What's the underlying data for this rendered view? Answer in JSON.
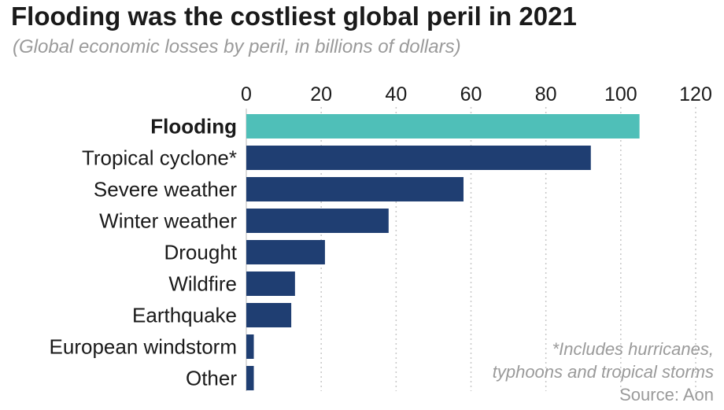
{
  "chart_data": {
    "type": "bar",
    "orientation": "horizontal",
    "title": "Flooding was the costliest global peril in 2021",
    "subtitle": "(Global economic losses by peril, in billions of dollars)",
    "categories": [
      "Flooding",
      "Tropical cyclone*",
      "Severe weather",
      "Winter weather",
      "Drought",
      "Wildfire",
      "Earthquake",
      "European windstorm",
      "Other"
    ],
    "values": [
      105,
      92,
      58,
      38,
      21,
      13,
      12,
      2,
      2
    ],
    "highlight_index": 0,
    "xlim": [
      0,
      120
    ],
    "ticks": [
      "0",
      "20",
      "40",
      "60",
      "80",
      "100",
      "120"
    ],
    "grid": true,
    "grid_style": "dotted vertical",
    "colors": {
      "bar": "#1f3e72",
      "highlight": "#4fbfb8",
      "grid": "#c8c8c8"
    },
    "footnote_lines": [
      "*Includes hurricanes,",
      "typhoons and tropical storms"
    ],
    "source": "Source: Aon"
  }
}
